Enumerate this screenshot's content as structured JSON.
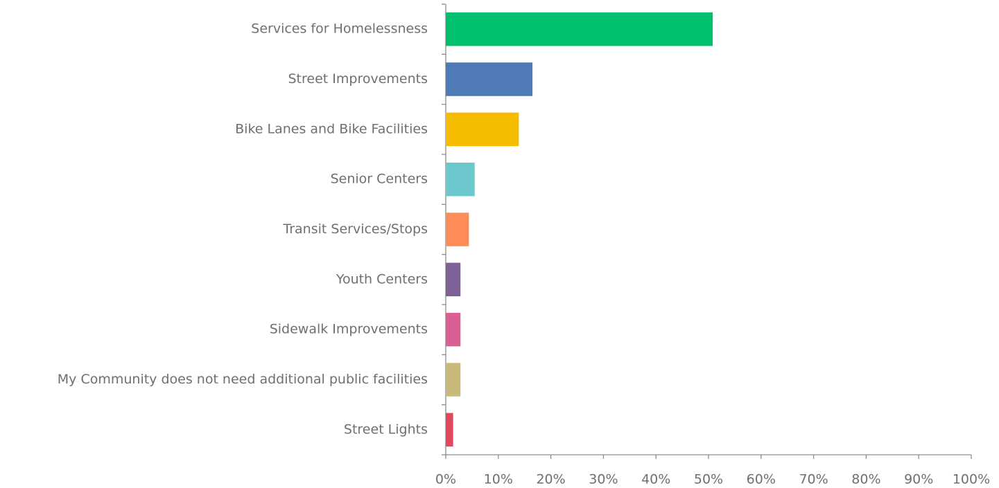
{
  "chart_data": {
    "type": "barh",
    "categories": [
      "Services for Homelessness",
      "Street Improvements",
      "Bike Lanes and Bike Facilities",
      "Senior Centers",
      "Transit Services/Stops",
      "Youth Centers",
      "Sidewalk Improvements",
      "My Community does not need additional public facilities",
      "Street Lights"
    ],
    "values": [
      50.8,
      16.5,
      13.9,
      5.5,
      4.4,
      2.8,
      2.8,
      2.8,
      1.4
    ],
    "colors": [
      "#00c16e",
      "#4e7ab5",
      "#f5bd00",
      "#6cc8cc",
      "#fe8c58",
      "#7e6296",
      "#d95f95",
      "#c9b97a",
      "#e0485f"
    ],
    "xlim": [
      0,
      100
    ],
    "xticks": [
      {
        "value": 0,
        "label": "0%"
      },
      {
        "value": 10,
        "label": "10%"
      },
      {
        "value": 20,
        "label": "20%"
      },
      {
        "value": 30,
        "label": "30%"
      },
      {
        "value": 40,
        "label": "40%"
      },
      {
        "value": 50,
        "label": "50%"
      },
      {
        "value": 60,
        "label": "60%"
      },
      {
        "value": 70,
        "label": "70%"
      },
      {
        "value": 80,
        "label": "80%"
      },
      {
        "value": 90,
        "label": "90%"
      },
      {
        "value": 100,
        "label": "100%"
      }
    ],
    "grid": false
  }
}
